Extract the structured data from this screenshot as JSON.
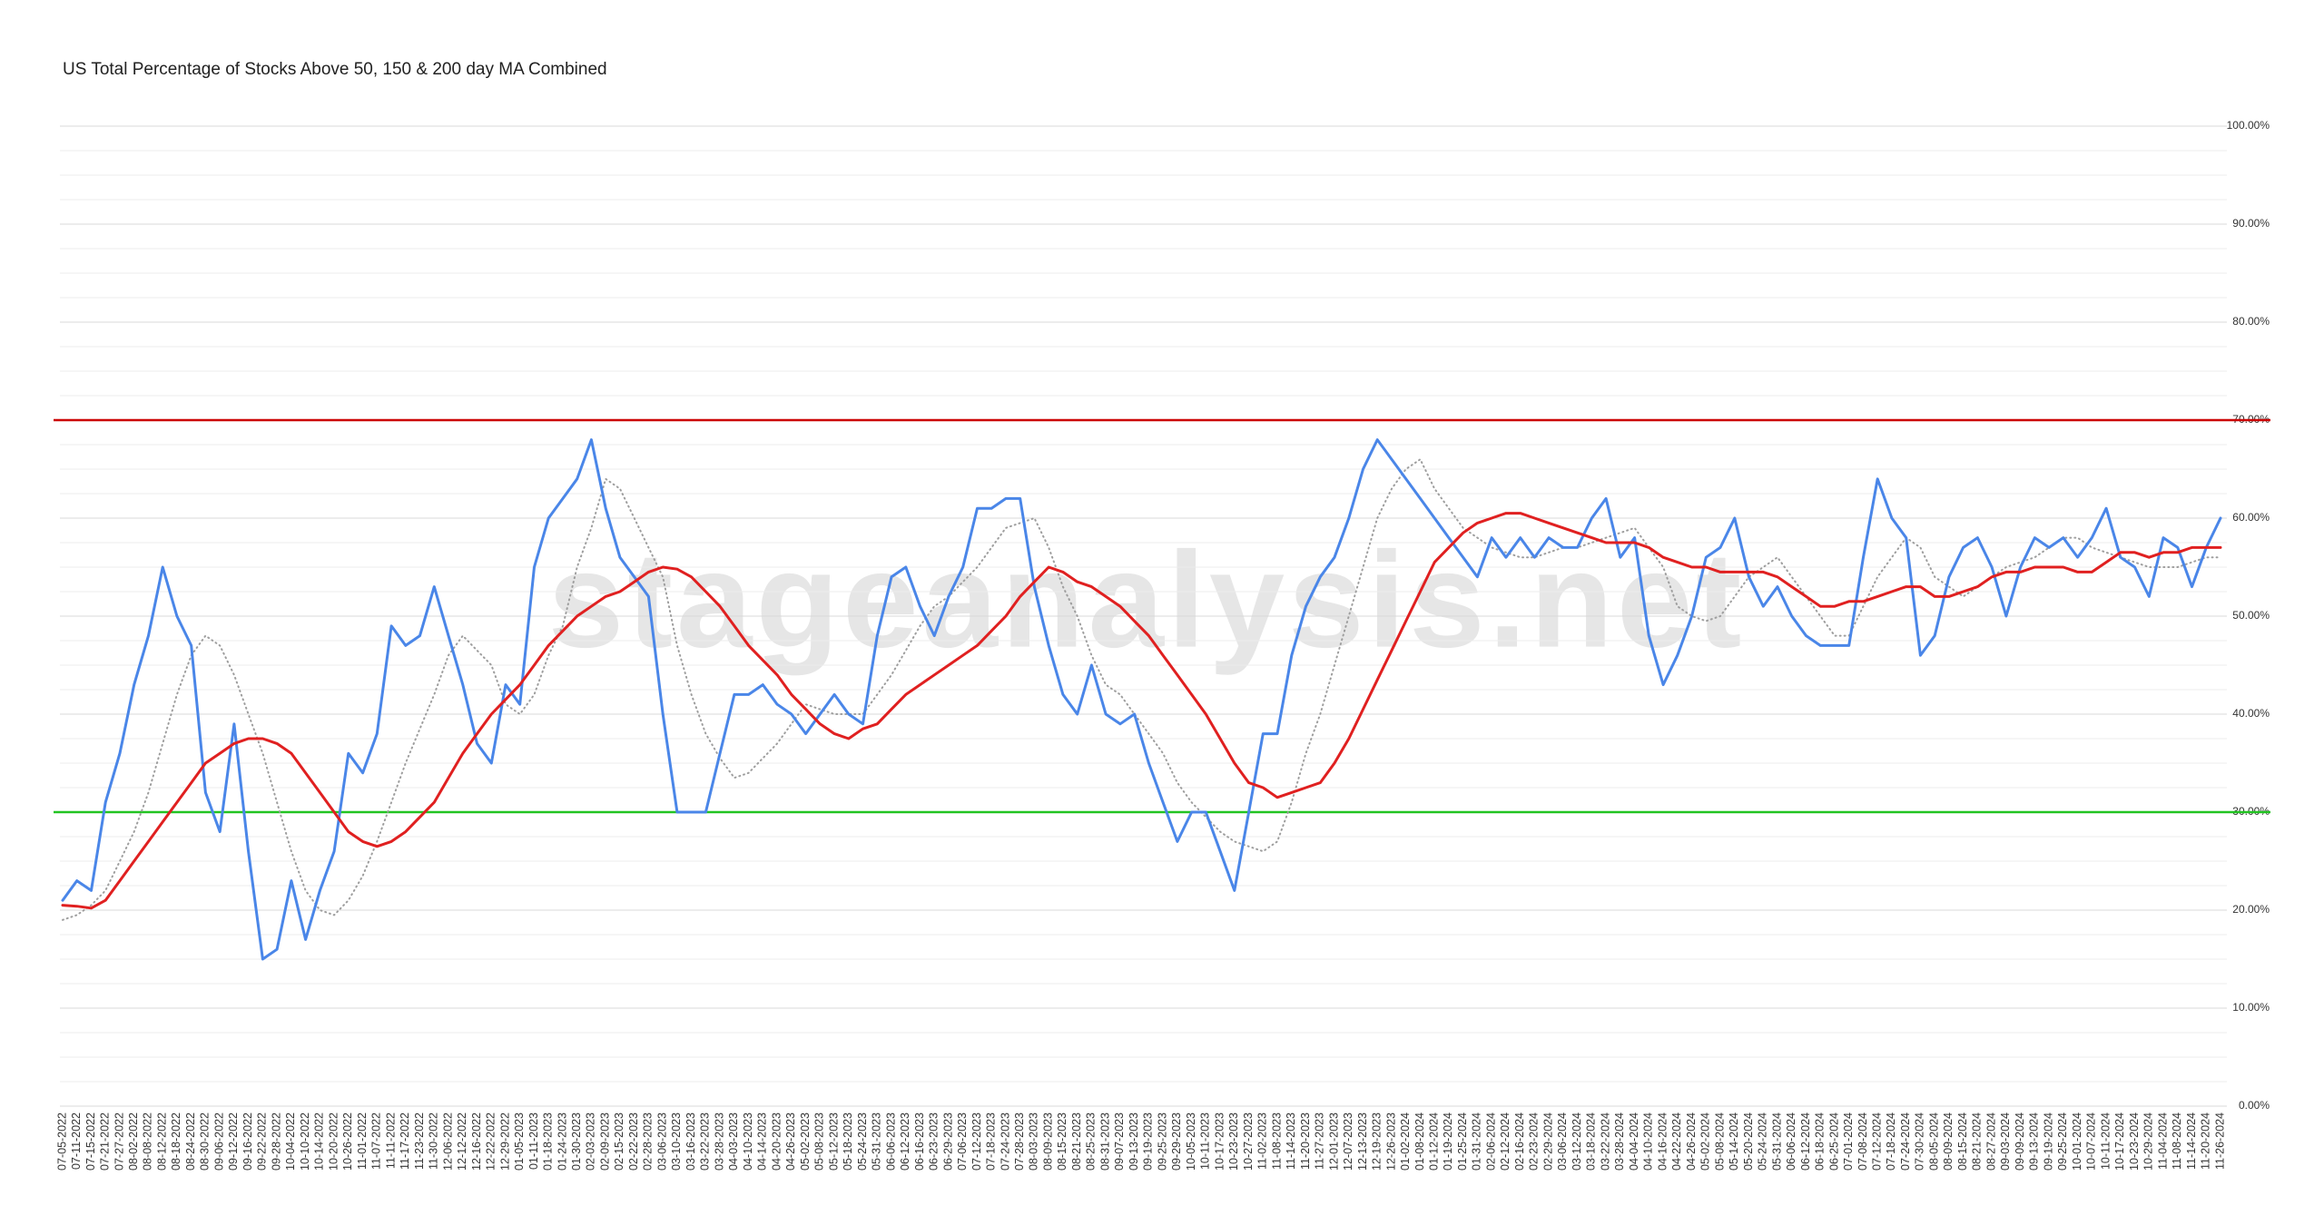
{
  "chart_data": {
    "type": "line",
    "title": "US Total Percentage of Stocks Above 50, 150 & 200 day MA Combined",
    "watermark": "stageanalysis.net",
    "categories": [
      "07-05-2022",
      "07-11-2022",
      "07-15-2022",
      "07-21-2022",
      "07-27-2022",
      "08-02-2022",
      "08-08-2022",
      "08-12-2022",
      "08-18-2022",
      "08-24-2022",
      "08-30-2022",
      "09-06-2022",
      "09-12-2022",
      "09-16-2022",
      "09-22-2022",
      "09-28-2022",
      "10-04-2022",
      "10-10-2022",
      "10-14-2022",
      "10-20-2022",
      "10-26-2022",
      "11-01-2022",
      "11-07-2022",
      "11-11-2022",
      "11-17-2022",
      "11-23-2022",
      "11-30-2022",
      "12-06-2022",
      "12-12-2022",
      "12-16-2022",
      "12-22-2022",
      "12-29-2022",
      "01-05-2023",
      "01-11-2023",
      "01-18-2023",
      "01-24-2023",
      "01-30-2023",
      "02-03-2023",
      "02-09-2023",
      "02-15-2023",
      "02-22-2023",
      "02-28-2023",
      "03-06-2023",
      "03-10-2023",
      "03-16-2023",
      "03-22-2023",
      "03-28-2023",
      "04-03-2023",
      "04-10-2023",
      "04-14-2023",
      "04-20-2023",
      "04-26-2023",
      "05-02-2023",
      "05-08-2023",
      "05-12-2023",
      "05-18-2023",
      "05-24-2023",
      "05-31-2023",
      "06-06-2023",
      "06-12-2023",
      "06-16-2023",
      "06-23-2023",
      "06-29-2023",
      "07-06-2023",
      "07-12-2023",
      "07-18-2023",
      "07-24-2023",
      "07-28-2023",
      "08-03-2023",
      "08-09-2023",
      "08-15-2023",
      "08-21-2023",
      "08-25-2023",
      "08-31-2023",
      "09-07-2023",
      "09-13-2023",
      "09-19-2023",
      "09-25-2023",
      "09-29-2023",
      "10-05-2023",
      "10-11-2023",
      "10-17-2023",
      "10-23-2023",
      "10-27-2023",
      "11-02-2023",
      "11-08-2023",
      "11-14-2023",
      "11-20-2023",
      "11-27-2023",
      "12-01-2023",
      "12-07-2023",
      "12-13-2023",
      "12-19-2023",
      "12-26-2023",
      "01-02-2024",
      "01-08-2024",
      "01-12-2024",
      "01-19-2024",
      "01-25-2024",
      "01-31-2024",
      "02-06-2024",
      "02-12-2024",
      "02-16-2024",
      "02-23-2024",
      "02-29-2024",
      "03-06-2024",
      "03-12-2024",
      "03-18-2024",
      "03-22-2024",
      "03-28-2024",
      "04-04-2024",
      "04-10-2024",
      "04-16-2024",
      "04-22-2024",
      "04-26-2024",
      "05-02-2024",
      "05-08-2024",
      "05-14-2024",
      "05-20-2024",
      "05-24-2024",
      "05-31-2024",
      "06-06-2024",
      "06-12-2024",
      "06-18-2024",
      "06-25-2024",
      "07-01-2024",
      "07-08-2024",
      "07-12-2024",
      "07-18-2024",
      "07-24-2024",
      "07-30-2024",
      "08-05-2024",
      "08-09-2024",
      "08-15-2024",
      "08-21-2024",
      "08-27-2024",
      "09-03-2024",
      "09-09-2024",
      "09-13-2024",
      "09-19-2024",
      "09-25-2024",
      "10-01-2024",
      "10-07-2024",
      "10-11-2024",
      "10-17-2024",
      "10-23-2024",
      "10-29-2024",
      "11-04-2024",
      "11-08-2024",
      "11-14-2024",
      "11-20-2024",
      "11-26-2024"
    ],
    "series": [
      {
        "color": "#9e9e9e",
        "style": "dotted",
        "values": [
          19,
          19.5,
          20.5,
          22,
          25,
          28,
          32,
          37,
          42,
          46,
          48,
          47,
          44,
          40,
          36,
          31,
          26,
          22,
          20,
          19.5,
          21,
          23.5,
          27,
          31,
          35,
          38.5,
          42,
          46,
          48,
          46.5,
          45,
          41,
          40,
          42,
          46,
          49,
          55,
          59,
          64,
          63,
          60,
          57,
          54,
          47,
          42,
          38,
          35.5,
          33.5,
          34,
          35.5,
          37,
          39,
          41,
          40.5,
          40,
          40,
          40,
          42,
          44,
          46.5,
          49,
          51,
          52,
          53.5,
          55,
          57,
          59,
          59.5,
          60,
          57,
          53,
          50,
          46,
          43,
          42,
          40,
          38,
          36,
          33,
          31,
          29.5,
          28,
          27,
          26.5,
          26,
          27,
          31,
          36,
          40,
          45,
          50,
          55,
          60,
          63,
          65,
          66,
          63,
          61,
          59,
          58,
          57,
          56.5,
          56,
          56,
          56.5,
          57,
          57,
          57.5,
          58,
          58.5,
          59,
          57,
          55,
          51,
          50,
          49.5,
          50,
          52,
          54,
          55,
          56,
          54,
          52,
          50,
          48,
          48,
          51,
          54,
          56,
          58,
          57,
          54,
          53,
          52,
          53,
          54,
          55,
          55.5,
          56,
          57,
          58,
          58,
          57,
          56.5,
          56,
          55.5,
          55,
          55,
          55,
          55.5,
          56,
          56
        ]
      },
      {
        "color": "#4a86e8",
        "style": "solid",
        "values": [
          21,
          23,
          22,
          31,
          36,
          43,
          48,
          55,
          50,
          47,
          32,
          28,
          39,
          26,
          15,
          16,
          23,
          17,
          22,
          26,
          36,
          34,
          38,
          49,
          47,
          48,
          53,
          48,
          43,
          37,
          35,
          43,
          41,
          55,
          60,
          62,
          64,
          68,
          61,
          56,
          54,
          52,
          40,
          30,
          30,
          30,
          36,
          42,
          42,
          43,
          41,
          40,
          38,
          40,
          42,
          40,
          39,
          48,
          54,
          55,
          51,
          48,
          52,
          55,
          61,
          61,
          62,
          62,
          53,
          47,
          42,
          40,
          45,
          40,
          39,
          40,
          35,
          31,
          27,
          30,
          30,
          26,
          22,
          30,
          38,
          38,
          46,
          51,
          54,
          56,
          60,
          65,
          68,
          66,
          64,
          62,
          60,
          58,
          56,
          54,
          58,
          56,
          58,
          56,
          58,
          57,
          57,
          60,
          62,
          56,
          58,
          48,
          43,
          46,
          50,
          56,
          57,
          60,
          54,
          51,
          53,
          50,
          48,
          47,
          47,
          47,
          56,
          64,
          60,
          58,
          46,
          48,
          54,
          57,
          58,
          55,
          50,
          55,
          58,
          57,
          58,
          56,
          58,
          61,
          56,
          55,
          52,
          58,
          57,
          53,
          57,
          60
        ]
      },
      {
        "color": "#e02020",
        "style": "solid",
        "values": [
          20.5,
          20.4,
          20.2,
          21,
          23,
          25,
          27,
          29,
          31,
          33,
          35,
          36,
          37,
          37.5,
          37.5,
          37,
          36,
          34,
          32,
          30,
          28,
          27,
          26.5,
          27,
          28,
          29.5,
          31,
          33.5,
          36,
          38,
          40,
          41.5,
          43,
          45,
          47,
          48.5,
          50,
          51,
          52,
          52.5,
          53.5,
          54.5,
          55,
          54.8,
          54,
          52.5,
          51,
          49,
          47,
          45.5,
          44,
          42,
          40.5,
          39,
          38,
          37.5,
          38.5,
          39,
          40.5,
          42,
          43,
          44,
          45,
          46,
          47,
          48.5,
          50,
          52,
          53.5,
          55,
          54.5,
          53.5,
          53,
          52,
          51,
          49.5,
          48,
          46,
          44,
          42,
          40,
          37.5,
          35,
          33,
          32.5,
          31.5,
          32,
          32.5,
          33,
          35,
          37.5,
          40.5,
          43.5,
          46.5,
          49.5,
          52.5,
          55.5,
          57,
          58.5,
          59.5,
          60,
          60.5,
          60.5,
          60,
          59.5,
          59,
          58.5,
          58,
          57.5,
          57.5,
          57.5,
          57,
          56,
          55.5,
          55,
          55,
          54.5,
          54.5,
          54.5,
          54.5,
          54,
          53,
          52,
          51,
          51,
          51.5,
          51.5,
          52,
          52.5,
          53,
          53,
          52,
          52,
          52.5,
          53,
          54,
          54.5,
          54.5,
          55,
          55,
          55,
          54.5,
          54.5,
          55.5,
          56.5,
          56.5,
          56,
          56.5,
          56.5,
          57,
          57,
          57
        ]
      }
    ],
    "reference_lines": [
      {
        "value": 70,
        "color": "#cc0000"
      },
      {
        "value": 30,
        "color": "#22c422"
      }
    ],
    "ylim": [
      0,
      100
    ],
    "yticks": [
      {
        "value": 0,
        "label": "0.00%"
      },
      {
        "value": 10,
        "label": "10.00%"
      },
      {
        "value": 20,
        "label": "20.00%"
      },
      {
        "value": 30,
        "label": "30.00%"
      },
      {
        "value": 40,
        "label": "40.00%"
      },
      {
        "value": 50,
        "label": "50.00%"
      },
      {
        "value": 60,
        "label": "60.00%"
      },
      {
        "value": 70,
        "label": "70.00%"
      },
      {
        "value": 80,
        "label": "80.00%"
      },
      {
        "value": 90,
        "label": "90.00%"
      },
      {
        "value": 100,
        "label": "100.00%"
      }
    ],
    "minor_yticks": [
      2.5,
      5,
      7.5,
      12.5,
      15,
      17.5,
      22.5,
      25,
      27.5,
      32.5,
      35,
      37.5,
      42.5,
      45,
      47.5,
      52.5,
      55,
      57.5,
      62.5,
      65,
      67.5,
      72.5,
      75,
      77.5,
      82.5,
      85,
      87.5,
      92.5,
      95,
      97.5
    ],
    "grid": true
  }
}
